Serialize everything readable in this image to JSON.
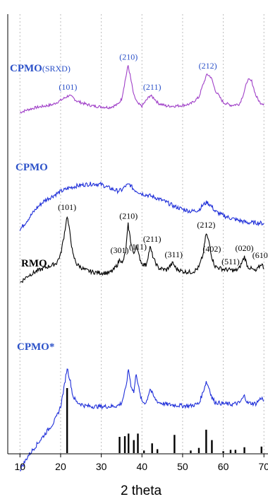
{
  "chart_data": {
    "type": "line",
    "title": "",
    "xlabel": "2 theta",
    "ylabel": "",
    "xlim": [
      7,
      71
    ],
    "xticks": [
      10,
      20,
      30,
      40,
      50,
      60,
      70
    ],
    "grid": "vertical-dotted",
    "colors": {
      "purple": "#a040c8",
      "blue": "#1f2fd9",
      "black": "#000000",
      "label_blue": "#2a50c8"
    },
    "series": [
      {
        "name": "CPMO",
        "name_suffix": "(SRXD)",
        "color": "#a040c8",
        "points": [
          [
            10,
            62
          ],
          [
            12,
            70
          ],
          [
            14,
            76
          ],
          [
            16,
            80
          ],
          [
            18,
            84
          ],
          [
            19,
            90
          ],
          [
            20,
            96
          ],
          [
            21,
            103
          ],
          [
            22,
            110
          ],
          [
            23,
            104
          ],
          [
            24,
            94
          ],
          [
            26,
            86
          ],
          [
            28,
            80
          ],
          [
            30,
            78
          ],
          [
            32,
            76
          ],
          [
            34,
            84
          ],
          [
            35,
            100
          ],
          [
            36,
            160
          ],
          [
            36.6,
            195
          ],
          [
            37.2,
            160
          ],
          [
            38,
            110
          ],
          [
            39,
            86
          ],
          [
            40,
            80
          ],
          [
            41,
            95
          ],
          [
            42,
            110
          ],
          [
            43,
            102
          ],
          [
            44,
            88
          ],
          [
            46,
            80
          ],
          [
            48,
            80
          ],
          [
            50,
            82
          ],
          [
            52,
            86
          ],
          [
            54,
            105
          ],
          [
            55,
            140
          ],
          [
            56,
            170
          ],
          [
            57,
            162
          ],
          [
            58,
            125
          ],
          [
            60,
            90
          ],
          [
            62,
            82
          ],
          [
            64,
            86
          ],
          [
            65,
            115
          ],
          [
            66,
            155
          ],
          [
            67,
            150
          ],
          [
            68,
            110
          ],
          [
            69,
            90
          ],
          [
            70,
            86
          ]
        ],
        "peaks": [
          {
            "label": "(101)",
            "x": 21.8
          },
          {
            "label": "(210)",
            "x": 36.7
          },
          {
            "label": "(211)",
            "x": 42.5
          },
          {
            "label": "(212)",
            "x": 56.2
          }
        ]
      },
      {
        "name": "CPMO",
        "color": "#1f2fd9",
        "points": [
          [
            10,
            40
          ],
          [
            12,
            70
          ],
          [
            14,
            100
          ],
          [
            16,
            122
          ],
          [
            18,
            135
          ],
          [
            20,
            148
          ],
          [
            22,
            158
          ],
          [
            24,
            164
          ],
          [
            26,
            168
          ],
          [
            28,
            170
          ],
          [
            30,
            168
          ],
          [
            32,
            158
          ],
          [
            34,
            150
          ],
          [
            35,
            152
          ],
          [
            36,
            164
          ],
          [
            37,
            168
          ],
          [
            38,
            154
          ],
          [
            40,
            142
          ],
          [
            42,
            136
          ],
          [
            44,
            128
          ],
          [
            46,
            118
          ],
          [
            48,
            106
          ],
          [
            50,
            98
          ],
          [
            52,
            92
          ],
          [
            54,
            96
          ],
          [
            55,
            110
          ],
          [
            56,
            118
          ],
          [
            57,
            108
          ],
          [
            58,
            92
          ],
          [
            60,
            80
          ],
          [
            62,
            72
          ],
          [
            64,
            66
          ],
          [
            66,
            60
          ],
          [
            68,
            60
          ],
          [
            70,
            58
          ]
        ],
        "peaks": []
      },
      {
        "name": "RMO",
        "color": "#000000",
        "points": [
          [
            10,
            40
          ],
          [
            12,
            60
          ],
          [
            14,
            72
          ],
          [
            16,
            82
          ],
          [
            18,
            90
          ],
          [
            19,
            96
          ],
          [
            20,
            120
          ],
          [
            20.8,
            170
          ],
          [
            21.6,
            230
          ],
          [
            22.4,
            172
          ],
          [
            23,
            120
          ],
          [
            24,
            92
          ],
          [
            26,
            76
          ],
          [
            28,
            70
          ],
          [
            30,
            68
          ],
          [
            32,
            68
          ],
          [
            33,
            76
          ],
          [
            34,
            92
          ],
          [
            34.6,
            108
          ],
          [
            35.2,
            94
          ],
          [
            36,
            128
          ],
          [
            36.6,
            205
          ],
          [
            37.2,
            160
          ],
          [
            38,
            118
          ],
          [
            38.6,
            148
          ],
          [
            39.2,
            118
          ],
          [
            40,
            94
          ],
          [
            41,
            90
          ],
          [
            42,
            140
          ],
          [
            43,
            104
          ],
          [
            44,
            82
          ],
          [
            46,
            76
          ],
          [
            47.6,
            96
          ],
          [
            48.4,
            80
          ],
          [
            50,
            72
          ],
          [
            52,
            70
          ],
          [
            53,
            74
          ],
          [
            54,
            84
          ],
          [
            55,
            118
          ],
          [
            55.8,
            180
          ],
          [
            56.6,
            150
          ],
          [
            57.2,
            112
          ],
          [
            58,
            86
          ],
          [
            60,
            78
          ],
          [
            62,
            76
          ],
          [
            63,
            74
          ],
          [
            64,
            82
          ],
          [
            65.2,
            114
          ],
          [
            66,
            86
          ],
          [
            68,
            72
          ],
          [
            69.4,
            94
          ],
          [
            70,
            82
          ]
        ],
        "peaks": [
          {
            "label": "(101)",
            "x": 21.6
          },
          {
            "label": "(301)",
            "x": 34.5
          },
          {
            "label": "(210)",
            "x": 36.7
          },
          {
            "label": "(111)",
            "x": 39.0
          },
          {
            "label": "(211)",
            "x": 42.5
          },
          {
            "label": "(311)",
            "x": 47.8
          },
          {
            "label": "(212)",
            "x": 55.8
          },
          {
            "label": "(402)",
            "x": 57.2
          },
          {
            "label": "(511)",
            "x": 61.8
          },
          {
            "label": "(020)",
            "x": 65.2
          },
          {
            "label": "(610)",
            "x": 69.4
          }
        ]
      },
      {
        "name": "CPMO*",
        "color": "#1f2fd9",
        "points": [
          [
            10,
            -110
          ],
          [
            12,
            -70
          ],
          [
            14,
            -40
          ],
          [
            16,
            -10
          ],
          [
            18,
            20
          ],
          [
            19,
            40
          ],
          [
            20,
            70
          ],
          [
            20.8,
            120
          ],
          [
            21.6,
            180
          ],
          [
            22.4,
            140
          ],
          [
            23,
            100
          ],
          [
            24,
            82
          ],
          [
            26,
            72
          ],
          [
            28,
            70
          ],
          [
            30,
            70
          ],
          [
            32,
            70
          ],
          [
            34,
            72
          ],
          [
            35,
            80
          ],
          [
            36,
            120
          ],
          [
            36.7,
            175
          ],
          [
            37.3,
            130
          ],
          [
            38,
            110
          ],
          [
            38.6,
            165
          ],
          [
            39.4,
            110
          ],
          [
            40,
            84
          ],
          [
            41,
            80
          ],
          [
            42,
            120
          ],
          [
            43,
            95
          ],
          [
            44,
            82
          ],
          [
            46,
            76
          ],
          [
            48,
            74
          ],
          [
            50,
            72
          ],
          [
            52,
            72
          ],
          [
            54,
            78
          ],
          [
            55,
            110
          ],
          [
            55.8,
            140
          ],
          [
            56.6,
            120
          ],
          [
            57.2,
            95
          ],
          [
            58,
            82
          ],
          [
            60,
            78
          ],
          [
            62,
            76
          ],
          [
            64,
            80
          ],
          [
            65.2,
            100
          ],
          [
            66,
            80
          ],
          [
            68,
            78
          ],
          [
            69.4,
            95
          ],
          [
            70,
            85
          ]
        ],
        "peaks": []
      }
    ],
    "reference_pattern": {
      "color": "#000000",
      "positions": [
        21.6,
        34.5,
        35.8,
        36.7,
        38.0,
        39.0,
        40.5,
        42.5,
        43.8,
        48.0,
        52.0,
        54.0,
        55.8,
        57.2,
        60.0,
        61.8,
        63.0,
        65.2,
        69.4
      ],
      "intensities": [
        100,
        25,
        26,
        30,
        20,
        30,
        4,
        15,
        6,
        28,
        4,
        8,
        36,
        20,
        3,
        5,
        5,
        9,
        10
      ]
    }
  }
}
